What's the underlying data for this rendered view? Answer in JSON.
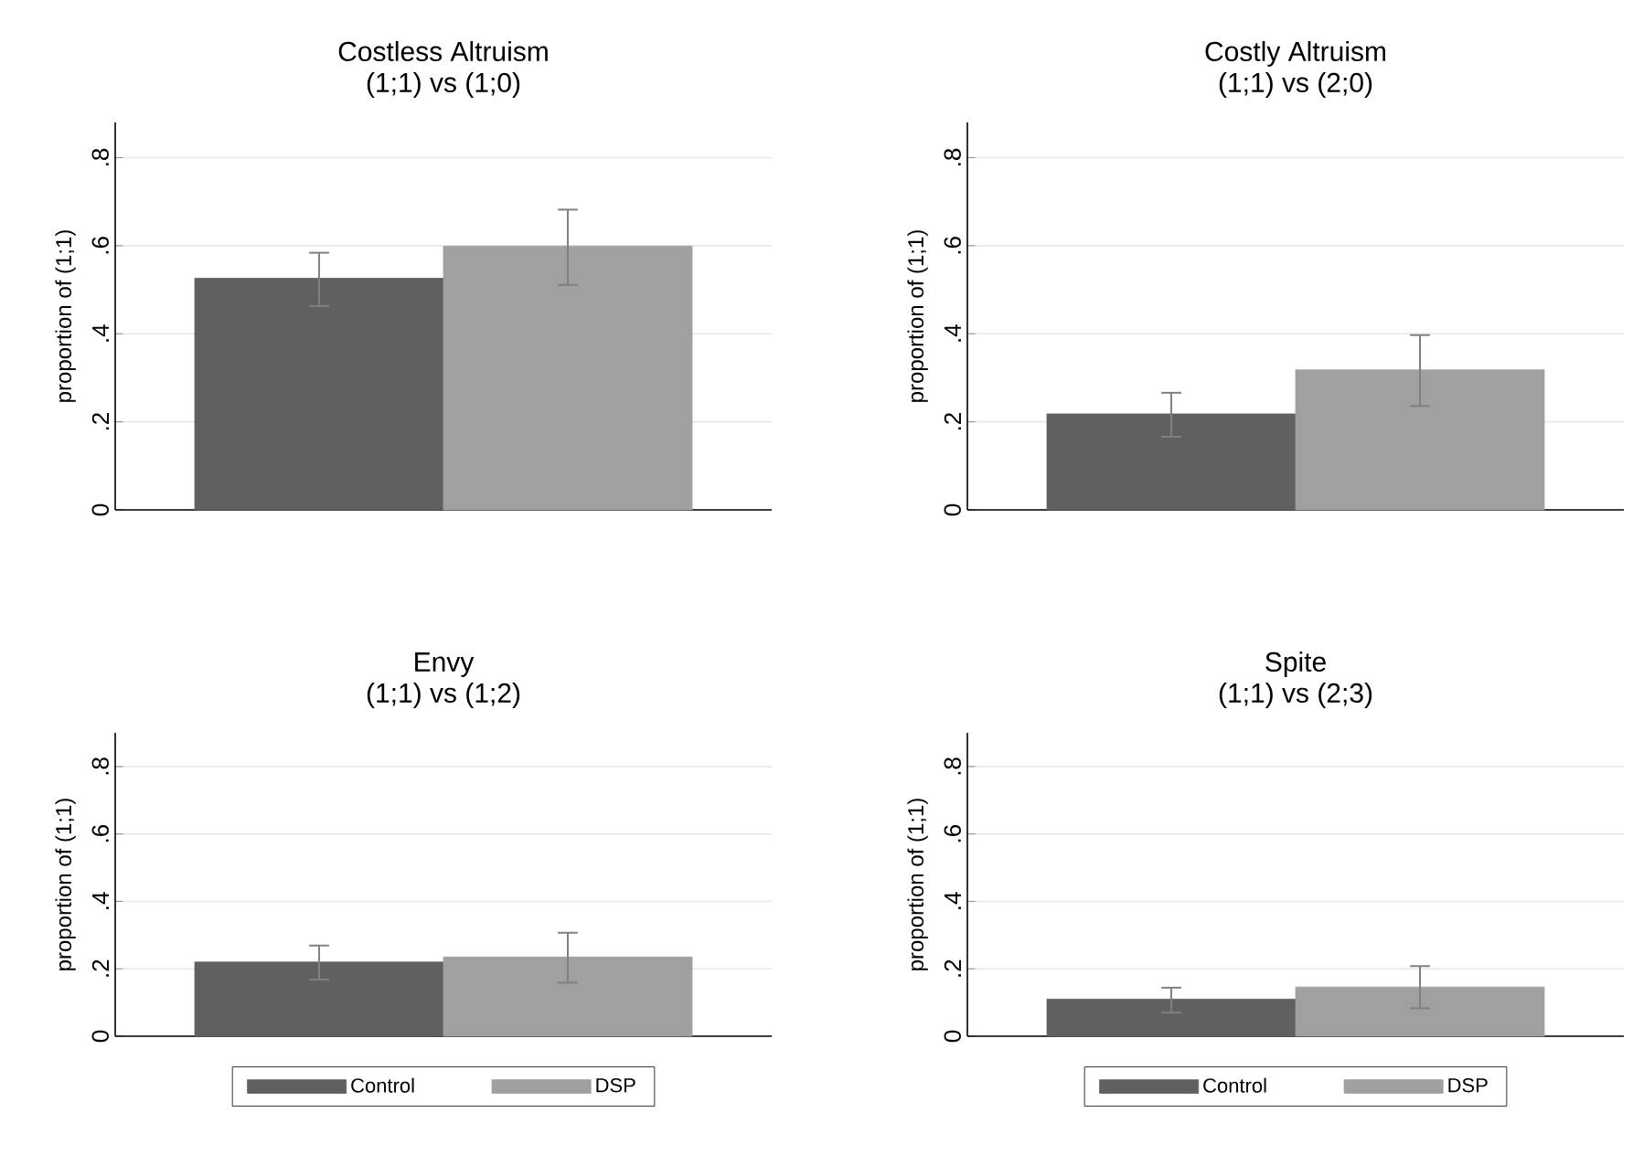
{
  "chart_data": [
    {
      "type": "bar",
      "title": "Costless Altruism",
      "subtitle": "(1;1) vs (1;0)",
      "ylabel": "proportion of (1;1)",
      "categories": [
        null
      ],
      "series": [
        {
          "color": "#606060",
          "values": [
            0.526
          ],
          "errors": [
            [
              0.463,
              0.584
            ]
          ]
        },
        {
          "color": "#a0a0a0",
          "values": [
            0.599
          ],
          "errors": [
            [
              0.511,
              0.682
            ]
          ]
        }
      ],
      "ylim": [
        0,
        0.88
      ],
      "yticks": [
        0,
        {
          "value": 0.2,
          "label": ".2"
        },
        {
          "value": 0.4,
          "label": ".4"
        },
        {
          "value": 0.6,
          "label": ".6"
        },
        {
          "value": 0.8,
          "label": ".8"
        }
      ],
      "grid": "y",
      "legend": false
    },
    {
      "type": "bar",
      "title": "Costly Altruism",
      "subtitle": "(1;1) vs (2;0)",
      "ylabel": "proportion of (1;1)",
      "categories": [
        null
      ],
      "series": [
        {
          "color": "#606060",
          "values": [
            0.218
          ],
          "errors": [
            [
              0.166,
              0.266
            ]
          ]
        },
        {
          "color": "#a0a0a0",
          "values": [
            0.318
          ],
          "errors": [
            [
              0.236,
              0.397
            ]
          ]
        }
      ],
      "ylim": [
        0,
        0.88
      ],
      "yticks": [
        0,
        {
          "value": 0.2,
          "label": ".2"
        },
        {
          "value": 0.4,
          "label": ".4"
        },
        {
          "value": 0.6,
          "label": ".6"
        },
        {
          "value": 0.8,
          "label": ".8"
        }
      ],
      "grid": "y",
      "legend": false
    },
    {
      "type": "bar",
      "title": "Envy",
      "subtitle": "(1;1) vs (1;2)",
      "ylabel": "proportion of (1;1)",
      "categories": [
        null
      ],
      "series": [
        {
          "name": "Control",
          "color": "#606060",
          "values": [
            0.22
          ],
          "errors": [
            [
              0.168,
              0.269
            ]
          ]
        },
        {
          "name": "DSP",
          "color": "#a0a0a0",
          "values": [
            0.235
          ],
          "errors": [
            [
              0.159,
              0.307
            ]
          ]
        }
      ],
      "ylim": [
        0,
        0.9
      ],
      "yticks": [
        0,
        {
          "value": 0.2,
          "label": ".2"
        },
        {
          "value": 0.4,
          "label": ".4"
        },
        {
          "value": 0.6,
          "label": ".6"
        },
        {
          "value": 0.8,
          "label": ".8"
        }
      ],
      "grid": "y",
      "legend": "bottom"
    },
    {
      "type": "bar",
      "title": "Spite",
      "subtitle": "(1;1) vs (2;3)",
      "ylabel": "proportion of (1;1)",
      "categories": [
        null
      ],
      "series": [
        {
          "name": "Control",
          "color": "#606060",
          "values": [
            0.11
          ],
          "errors": [
            [
              0.07,
              0.144
            ]
          ]
        },
        {
          "name": "DSP",
          "color": "#a0a0a0",
          "values": [
            0.146
          ],
          "errors": [
            [
              0.083,
              0.208
            ]
          ]
        }
      ],
      "ylim": [
        0,
        0.9
      ],
      "yticks": [
        0,
        {
          "value": 0.2,
          "label": ".2"
        },
        {
          "value": 0.4,
          "label": ".4"
        },
        {
          "value": 0.6,
          "label": ".6"
        },
        {
          "value": 0.8,
          "label": ".8"
        }
      ],
      "grid": "y",
      "legend": "bottom"
    }
  ]
}
